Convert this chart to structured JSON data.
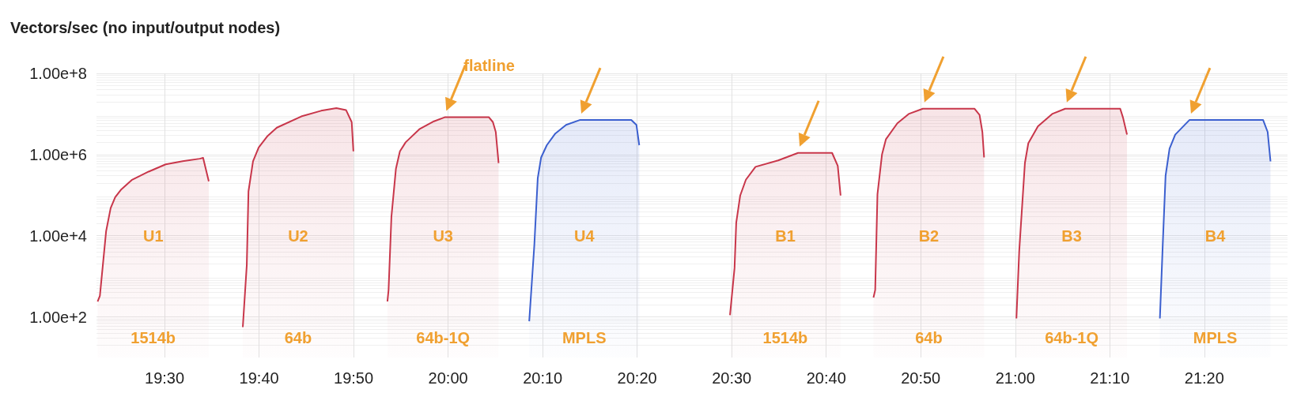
{
  "chart_data": {
    "type": "area",
    "title": "Vectors/sec (no input/output nodes)",
    "xlim": [
      19.38,
      21.48
    ],
    "xticks": [
      {
        "value": 19.5,
        "label": "19:30"
      },
      {
        "value": 19.6667,
        "label": "19:40"
      },
      {
        "value": 19.8333,
        "label": "19:50"
      },
      {
        "value": 20,
        "label": "20:00"
      },
      {
        "value": 20.1667,
        "label": "20:10"
      },
      {
        "value": 20.3333,
        "label": "20:20"
      },
      {
        "value": 20.5,
        "label": "20:30"
      },
      {
        "value": 20.6667,
        "label": "20:40"
      },
      {
        "value": 20.8333,
        "label": "20:50"
      },
      {
        "value": 21,
        "label": "21:00"
      },
      {
        "value": 21.1667,
        "label": "21:10"
      },
      {
        "value": 21.3333,
        "label": "21:20"
      }
    ],
    "ylim": [
      10,
      100000000
    ],
    "yticks": [
      {
        "value": 100,
        "label": "1.00e+2"
      },
      {
        "value": 10000,
        "label": "1.00e+4"
      },
      {
        "value": 1000000,
        "label": "1.00e+6"
      },
      {
        "value": 100000000,
        "label": "1.00e+8"
      }
    ],
    "log": true,
    "grid": true,
    "series": [
      {
        "color": "#c8364a",
        "x": [
          19.382,
          19.386,
          19.397,
          19.405,
          19.413,
          19.423,
          19.442,
          19.472,
          19.502,
          19.532,
          19.562,
          19.568,
          19.578,
          19.6,
          19.638,
          19.645,
          19.648,
          19.656,
          19.666,
          19.681,
          19.698,
          19.741,
          19.776,
          19.803,
          19.82,
          19.83,
          19.833,
          19.86,
          19.893,
          19.895,
          19.9,
          19.908,
          19.915,
          19.925,
          19.95,
          19.975,
          19.994,
          20.072,
          20.079,
          20.084,
          20.089,
          20.3,
          20.497,
          20.505,
          20.508,
          20.515,
          20.525,
          20.542,
          20.582,
          20.617,
          20.677,
          20.687,
          20.692,
          20.72,
          20.75,
          20.753,
          20.757,
          20.765,
          20.772,
          20.792,
          20.812,
          20.837,
          20.928,
          20.937,
          20.942,
          20.945,
          20.97,
          21.002,
          21.007,
          21.017,
          21.023,
          21.04,
          21.065,
          21.088,
          21.185,
          21.19,
          21.197
        ],
        "values": [
          240,
          330,
          13000,
          48000,
          89000,
          135000,
          235000,
          380000,
          575000,
          690000,
          790000,
          830000,
          220000,
          null,
          56,
          1900,
          124000,
          680000,
          1500000,
          2800000,
          4600000,
          8700000,
          12000000,
          14000000,
          12500000,
          6300000,
          1200000,
          null,
          240,
          460,
          29000,
          450000,
          1200000,
          2000000,
          4300000,
          6600000,
          8300000,
          8300000,
          6300000,
          3600000,
          620000,
          null,
          110,
          1600,
          21000,
          98000,
          240000,
          500000,
          720000,
          1100000,
          1100000,
          530000,
          98000,
          null,
          300,
          460,
          105000,
          1000000,
          2400000,
          5900000,
          10000000,
          13500000,
          13500000,
          9500000,
          3600000,
          850000,
          null,
          92,
          4300,
          620000,
          1900000,
          5000000,
          10000000,
          13500000,
          13500000,
          8100000,
          3100000
        ]
      },
      {
        "color": "#3b5fcf",
        "x": [
          20.143,
          20.152,
          20.158,
          20.164,
          20.174,
          20.189,
          20.208,
          20.232,
          20.323,
          20.332,
          20.337,
          20.8,
          21.255,
          21.26,
          21.265,
          21.272,
          21.282,
          21.307,
          21.437,
          21.445,
          21.45
        ],
        "values": [
          78,
          5900,
          260000,
          850000,
          1700000,
          3300000,
          5400000,
          7100000,
          7100000,
          5400000,
          1700000,
          null,
          92,
          5900,
          300000,
          1400000,
          3100000,
          7100000,
          7100000,
          3600000,
          680000
        ]
      }
    ],
    "annotations": [
      "flatline",
      "U1",
      "1514b",
      "U2",
      "64b",
      "U3",
      "64b-1Q",
      "U4",
      "MPLS",
      "B1",
      "1514b",
      "B2",
      "64b",
      "B3",
      "64b-1Q",
      "B4",
      "MPLS"
    ]
  }
}
